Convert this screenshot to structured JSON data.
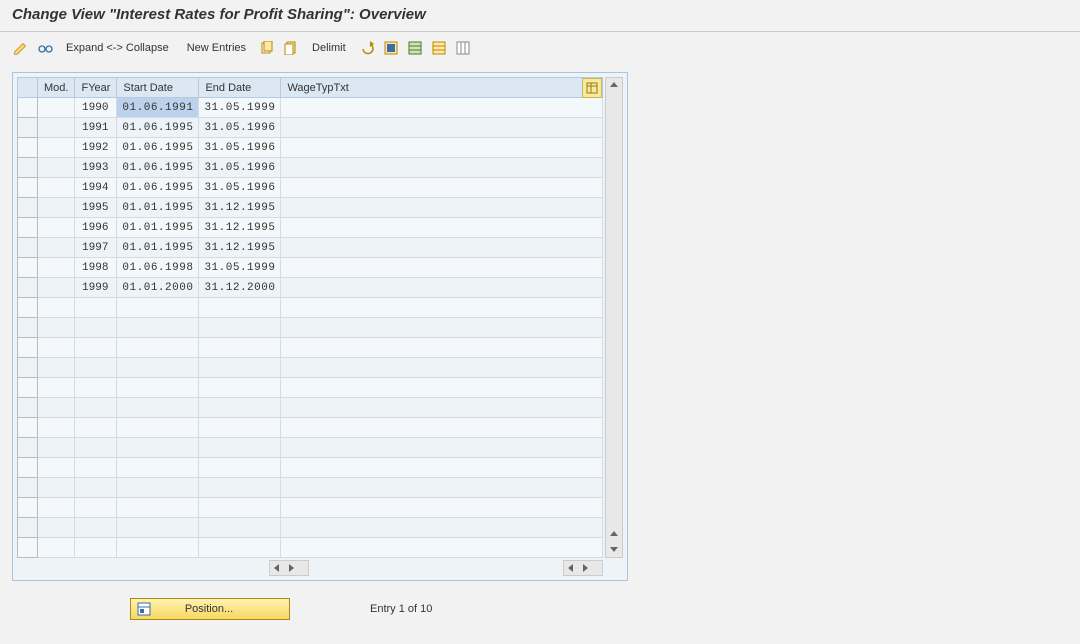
{
  "title": "Change View \"Interest Rates for Profit Sharing\": Overview",
  "toolbar": {
    "expand_collapse": "Expand <-> Collapse",
    "new_entries": "New Entries",
    "delimit": "Delimit"
  },
  "columns": {
    "mod": "Mod.",
    "fyear": "FYear",
    "start": "Start Date",
    "end": "End Date",
    "wtt": "WageTypTxt"
  },
  "rows": [
    {
      "mod": "",
      "fyear": "1990",
      "start": "01.06.1991",
      "end": "31.05.1999",
      "wtt": "",
      "selected_start": true
    },
    {
      "mod": "",
      "fyear": "1991",
      "start": "01.06.1995",
      "end": "31.05.1996",
      "wtt": ""
    },
    {
      "mod": "",
      "fyear": "1992",
      "start": "01.06.1995",
      "end": "31.05.1996",
      "wtt": ""
    },
    {
      "mod": "",
      "fyear": "1993",
      "start": "01.06.1995",
      "end": "31.05.1996",
      "wtt": ""
    },
    {
      "mod": "",
      "fyear": "1994",
      "start": "01.06.1995",
      "end": "31.05.1996",
      "wtt": ""
    },
    {
      "mod": "",
      "fyear": "1995",
      "start": "01.01.1995",
      "end": "31.12.1995",
      "wtt": ""
    },
    {
      "mod": "",
      "fyear": "1996",
      "start": "01.01.1995",
      "end": "31.12.1995",
      "wtt": ""
    },
    {
      "mod": "",
      "fyear": "1997",
      "start": "01.01.1995",
      "end": "31.12.1995",
      "wtt": ""
    },
    {
      "mod": "",
      "fyear": "1998",
      "start": "01.06.1998",
      "end": "31.05.1999",
      "wtt": ""
    },
    {
      "mod": "",
      "fyear": "1999",
      "start": "01.01.2000",
      "end": "31.12.2000",
      "wtt": ""
    }
  ],
  "empty_rows": 13,
  "footer": {
    "position_label": "Position...",
    "entry_status": "Entry 1 of 10"
  },
  "colors": {
    "header_bg": "#dbe7f3",
    "row_even": "#eef3f8",
    "row_odd": "#f5f8fb",
    "selected": "#bcd2ec",
    "frame": "#a9c4e0",
    "position_btn": "#f6d860"
  }
}
